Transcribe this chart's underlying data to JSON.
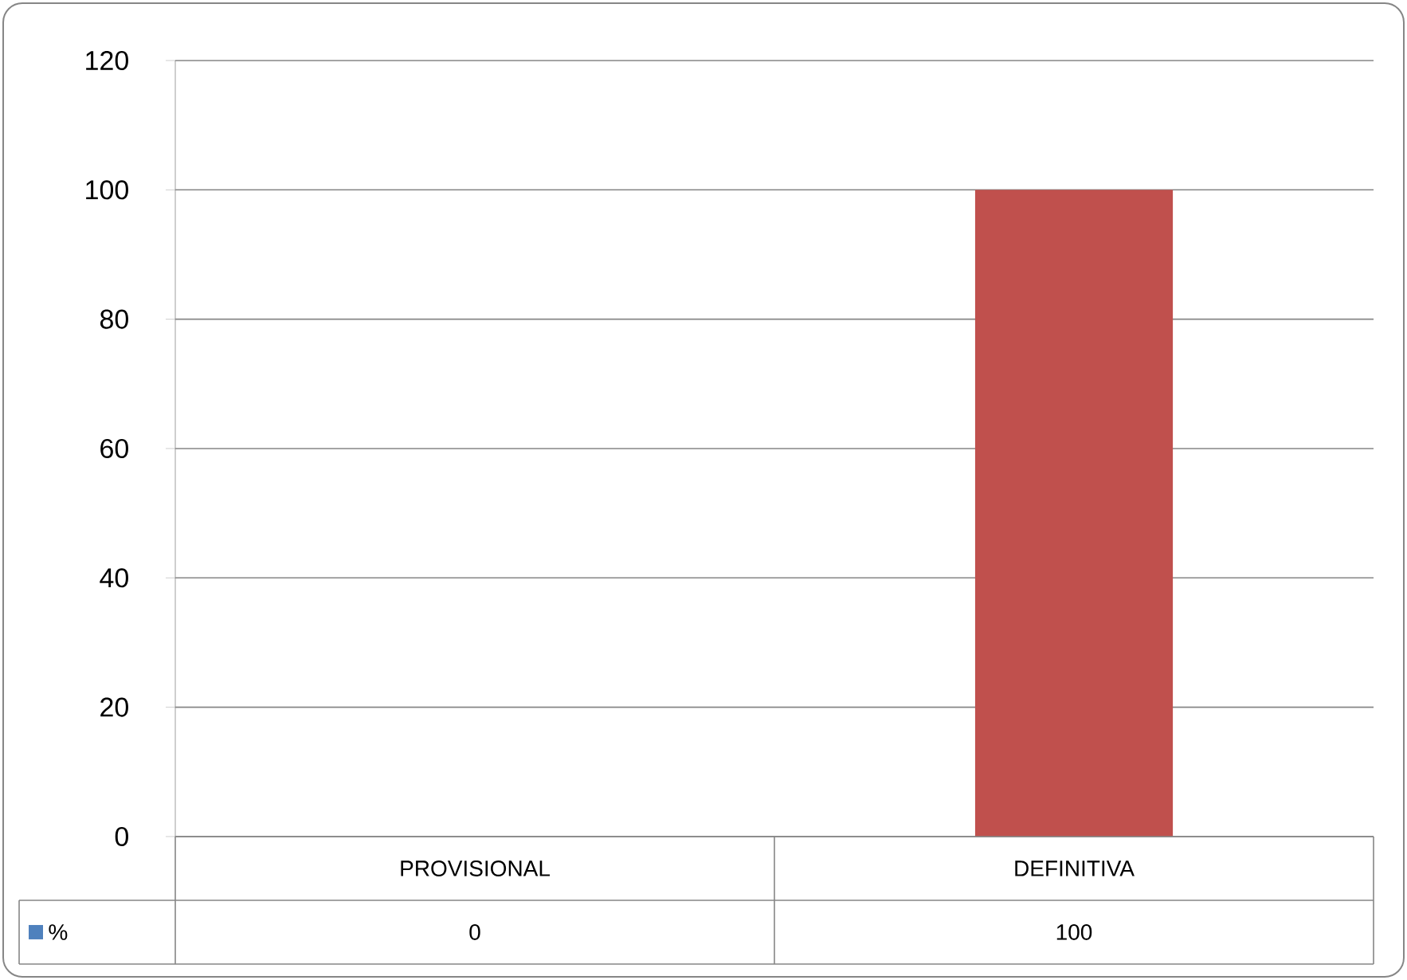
{
  "chart_data": {
    "type": "bar",
    "categories": [
      "PROVISIONAL",
      "DEFINITIVA"
    ],
    "series": [
      {
        "name": "%",
        "color": "#4f81bd",
        "colors": [
          "#4f81bd",
          "#c0504d"
        ],
        "values": [
          0,
          100
        ]
      }
    ],
    "ylim": [
      0,
      120
    ],
    "yticks": [
      0,
      20,
      40,
      60,
      80,
      100,
      120
    ],
    "grid": "y",
    "data_labels": true,
    "legend": "bottom"
  }
}
